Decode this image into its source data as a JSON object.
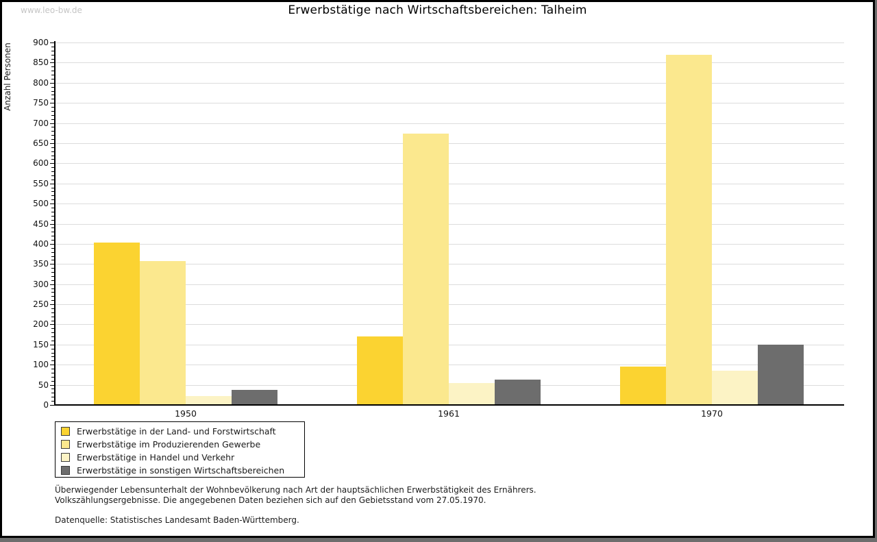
{
  "watermark": "www.leo-bw.de",
  "title": "Erwerbstätige nach Wirtschaftsbereichen: Talheim",
  "chart_data": {
    "type": "bar",
    "title": "Erwerbstätige nach Wirtschaftsbereichen: Talheim",
    "xlabel": "",
    "ylabel": "Anzahl Personen",
    "categories": [
      "1950",
      "1961",
      "1970"
    ],
    "series": [
      {
        "name": "Erwerbstätige in der Land- und Forstwirtschaft",
        "color": "#FBD331",
        "values": [
          403,
          170,
          95
        ]
      },
      {
        "name": "Erwerbstätige im Produzierenden Gewerbe",
        "color": "#FBE88E",
        "values": [
          358,
          673,
          870
        ]
      },
      {
        "name": "Erwerbstätige in Handel und Verkehr",
        "color": "#FCF3C5",
        "values": [
          22,
          55,
          85
        ]
      },
      {
        "name": "Erwerbstätige in sonstigen Wirtschaftsbereichen",
        "color": "#6D6D6D",
        "values": [
          38,
          63,
          150
        ]
      }
    ],
    "ylim": [
      0,
      900
    ],
    "ytick_step": 50,
    "yminor_step": 10,
    "yticks": [
      0,
      50,
      100,
      150,
      200,
      250,
      300,
      350,
      400,
      450,
      500,
      550,
      600,
      650,
      700,
      750,
      800,
      850,
      900
    ],
    "grid": "horizontal-major",
    "gridline_color": "#dcdcdc",
    "legend_position": "bottom-left"
  },
  "footer": {
    "line1": "Überwiegender Lebensunterhalt der Wohnbevölkerung nach Art der hauptsächlichen Erwerbstätigkeit des Ernährers.",
    "line2": "Volkszählungsergebnisse. Die angegebenen Daten beziehen sich auf den Gebietsstand vom 27.05.1970.",
    "source": "Datenquelle: Statistisches Landesamt Baden-Württemberg."
  }
}
